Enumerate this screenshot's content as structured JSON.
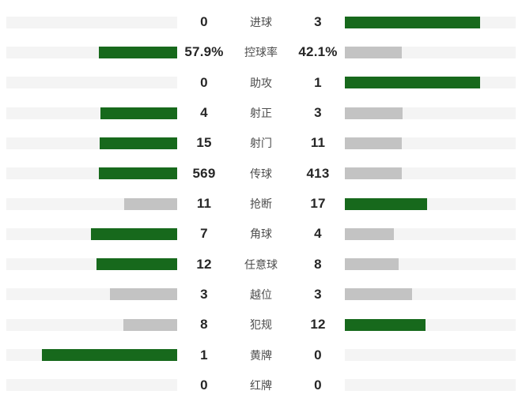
{
  "chart_data": {
    "type": "bar",
    "subtype": "head-to-head-match-stats",
    "title": "",
    "orientation": "horizontal-mirrored",
    "legend_position": "none",
    "grid": false,
    "max_bar_fraction": 0.79,
    "colors": {
      "leader_bar": "#17691c",
      "trailer_bar": "#c3c3c3",
      "track": "#f4f4f4",
      "value_text": "#262626",
      "label_text": "#4d4d4d",
      "background": "#ffffff"
    },
    "categories": [
      "进球",
      "控球率",
      "助攻",
      "射正",
      "射门",
      "传球",
      "抢断",
      "角球",
      "任意球",
      "越位",
      "犯规",
      "黄牌",
      "红牌"
    ],
    "series": [
      {
        "name": "home",
        "values": [
          0,
          57.9,
          0,
          4,
          15,
          569,
          11,
          7,
          12,
          3,
          8,
          1,
          0
        ]
      },
      {
        "name": "away",
        "values": [
          3,
          42.1,
          1,
          3,
          11,
          413,
          17,
          4,
          8,
          3,
          12,
          0,
          0
        ]
      }
    ],
    "rows": [
      {
        "label": "进球",
        "home": 0,
        "away": 3,
        "home_text": "0",
        "away_text": "3"
      },
      {
        "label": "控球率",
        "home": 57.9,
        "away": 42.1,
        "home_text": "57.9%",
        "away_text": "42.1%"
      },
      {
        "label": "助攻",
        "home": 0,
        "away": 1,
        "home_text": "0",
        "away_text": "1"
      },
      {
        "label": "射正",
        "home": 4,
        "away": 3,
        "home_text": "4",
        "away_text": "3"
      },
      {
        "label": "射门",
        "home": 15,
        "away": 11,
        "home_text": "15",
        "away_text": "11"
      },
      {
        "label": "传球",
        "home": 569,
        "away": 413,
        "home_text": "569",
        "away_text": "413"
      },
      {
        "label": "抢断",
        "home": 11,
        "away": 17,
        "home_text": "11",
        "away_text": "17"
      },
      {
        "label": "角球",
        "home": 7,
        "away": 4,
        "home_text": "7",
        "away_text": "4"
      },
      {
        "label": "任意球",
        "home": 12,
        "away": 8,
        "home_text": "12",
        "away_text": "8"
      },
      {
        "label": "越位",
        "home": 3,
        "away": 3,
        "home_text": "3",
        "away_text": "3"
      },
      {
        "label": "犯规",
        "home": 8,
        "away": 12,
        "home_text": "8",
        "away_text": "12"
      },
      {
        "label": "黄牌",
        "home": 1,
        "away": 0,
        "home_text": "1",
        "away_text": "0"
      },
      {
        "label": "红牌",
        "home": 0,
        "away": 0,
        "home_text": "0",
        "away_text": "0"
      }
    ]
  }
}
